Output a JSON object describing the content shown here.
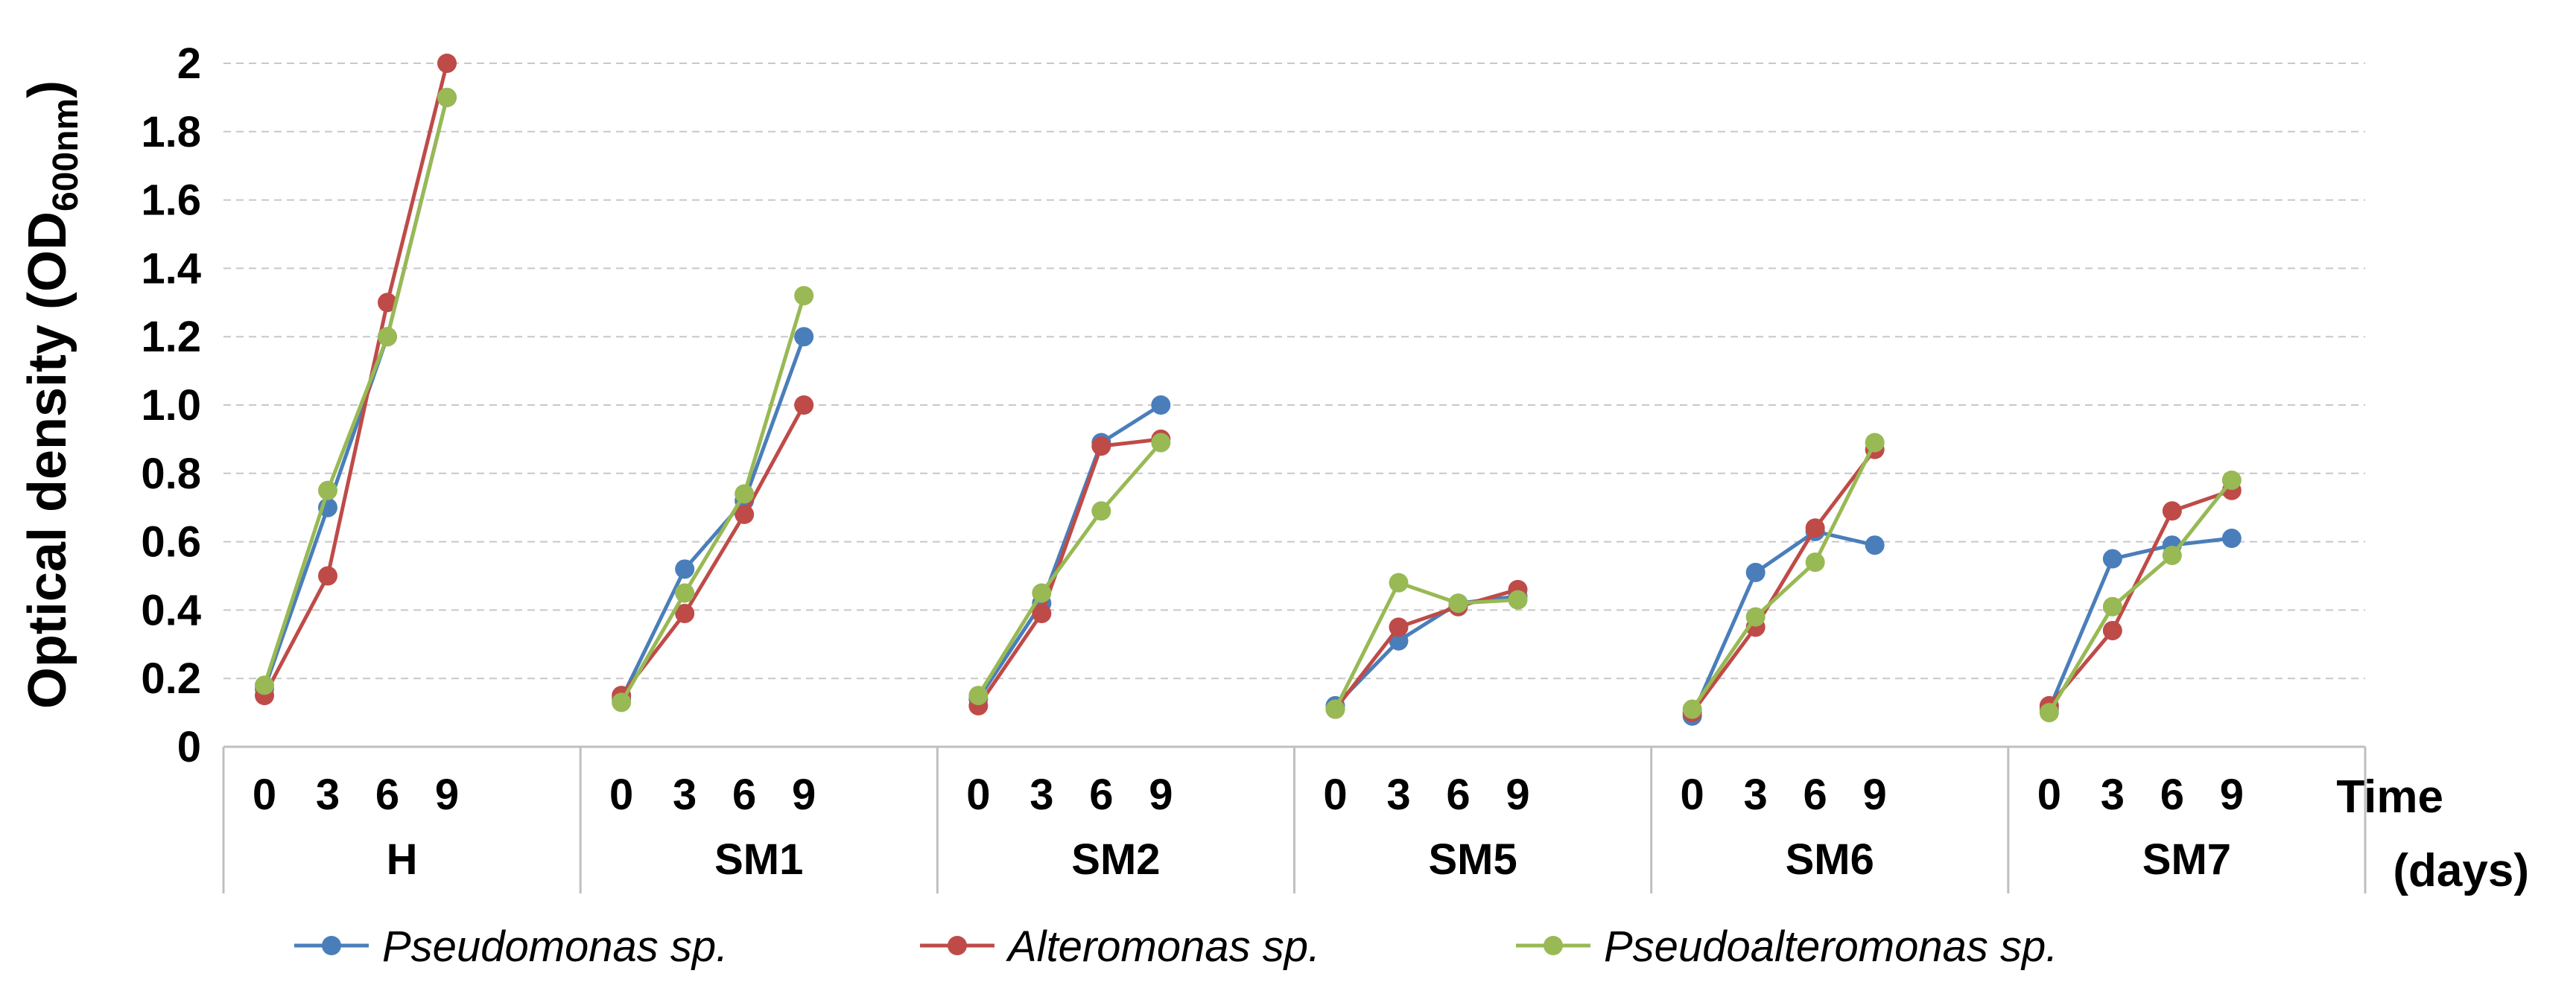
{
  "chart_data": {
    "type": "line",
    "ylabel": "Optical density (OD",
    "ylabel_sub": "600nm",
    "ylabel_close": ")",
    "xlabel": [
      "Time",
      "(days)"
    ],
    "ylim": [
      0,
      2
    ],
    "yticks": [
      "0",
      "0.2",
      "0.4",
      "0.6",
      "0.8",
      "1.0",
      "1.2",
      "1.4",
      "1.6",
      "1.8",
      "2"
    ],
    "ytick_values": [
      0,
      0.2,
      0.4,
      0.6,
      0.8,
      1.0,
      1.2,
      1.4,
      1.6,
      1.8,
      2.0
    ],
    "grid": true,
    "legend_position": "bottom",
    "days": [
      "0",
      "3",
      "6",
      "9"
    ],
    "groups": [
      {
        "name": "H",
        "series": [
          {
            "name": "Pseudomonas sp.",
            "values": [
              0.17,
              0.7,
              1.2,
              1.9
            ]
          },
          {
            "name": "Alteromonas sp.",
            "values": [
              0.15,
              0.5,
              1.3,
              2.0
            ]
          },
          {
            "name": "Pseudoalteromonas sp.",
            "values": [
              0.18,
              0.75,
              1.2,
              1.9
            ]
          }
        ]
      },
      {
        "name": "SM1",
        "series": [
          {
            "name": "Pseudomonas sp.",
            "values": [
              0.14,
              0.52,
              0.72,
              1.2
            ]
          },
          {
            "name": "Alteromonas sp.",
            "values": [
              0.15,
              0.39,
              0.68,
              1.0
            ]
          },
          {
            "name": "Pseudoalteromonas sp.",
            "values": [
              0.13,
              0.45,
              0.74,
              1.32
            ]
          }
        ]
      },
      {
        "name": "SM2",
        "series": [
          {
            "name": "Pseudomonas sp.",
            "values": [
              0.14,
              0.42,
              0.89,
              1.0
            ]
          },
          {
            "name": "Alteromonas sp.",
            "values": [
              0.12,
              0.39,
              0.88,
              0.9
            ]
          },
          {
            "name": "Pseudoalteromonas sp.",
            "values": [
              0.15,
              0.45,
              0.69,
              0.89
            ]
          }
        ]
      },
      {
        "name": "SM5",
        "series": [
          {
            "name": "Pseudomonas sp.",
            "values": [
              0.12,
              0.31,
              0.42,
              0.44
            ]
          },
          {
            "name": "Alteromonas sp.",
            "values": [
              0.11,
              0.35,
              0.41,
              0.46
            ]
          },
          {
            "name": "Pseudoalteromonas sp.",
            "values": [
              0.11,
              0.48,
              0.42,
              0.43
            ]
          }
        ]
      },
      {
        "name": "SM6",
        "series": [
          {
            "name": "Pseudomonas sp.",
            "values": [
              0.09,
              0.51,
              0.63,
              0.59
            ]
          },
          {
            "name": "Alteromonas sp.",
            "values": [
              0.1,
              0.35,
              0.64,
              0.87
            ]
          },
          {
            "name": "Pseudoalteromonas sp.",
            "values": [
              0.11,
              0.38,
              0.54,
              0.89
            ]
          }
        ]
      },
      {
        "name": "SM7",
        "series": [
          {
            "name": "Pseudomonas sp.",
            "values": [
              0.11,
              0.55,
              0.59,
              0.61
            ]
          },
          {
            "name": "Alteromonas sp.",
            "values": [
              0.12,
              0.34,
              0.69,
              0.75
            ]
          },
          {
            "name": "Pseudoalteromonas sp.",
            "values": [
              0.1,
              0.41,
              0.56,
              0.78
            ]
          }
        ]
      }
    ],
    "legend": [
      {
        "name": "Pseudomonas sp.",
        "color": "#4A7EBB"
      },
      {
        "name": "Alteromonas sp.",
        "color": "#BE4B48"
      },
      {
        "name": "Pseudoalteromonas sp.",
        "color": "#98B954"
      }
    ]
  }
}
